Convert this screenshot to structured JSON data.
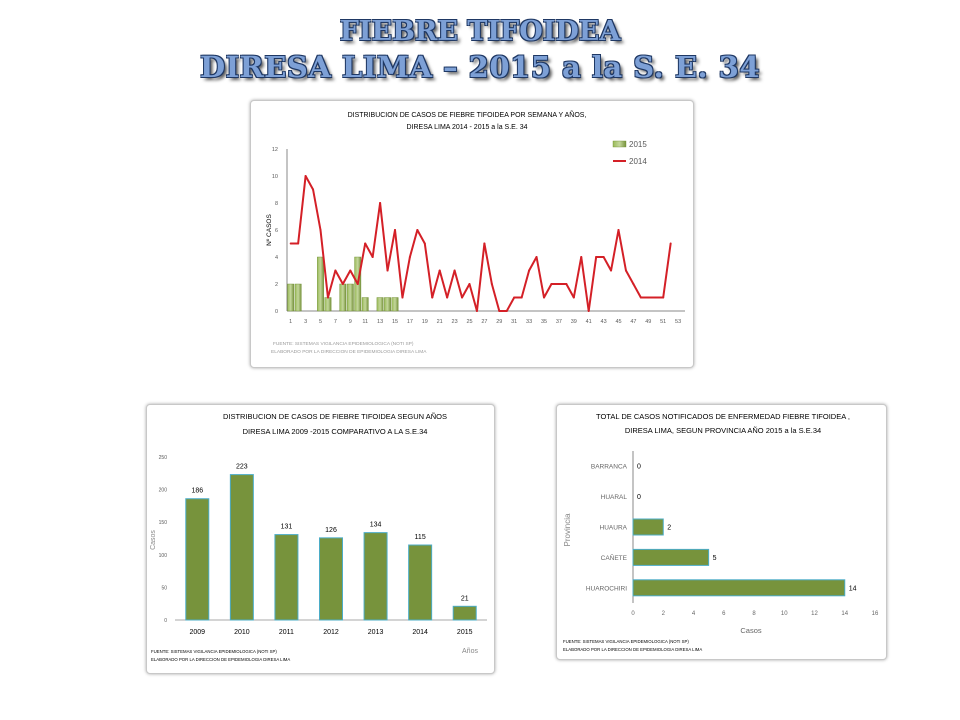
{
  "page": {
    "title_line1": "FIEBRE TIFOIDEA",
    "title_line2": "DIRESA LIMA – 2015 a la  S. E. 34"
  },
  "colors": {
    "bar_green": "#77933c",
    "bar_green_light": "#a9c77a",
    "line_red": "#d42027",
    "title_blue": "#7da0d6",
    "title_outline": "#1f3864"
  },
  "chart_data": [
    {
      "type": "line",
      "title": "DISTRIBUCION DE CASOS DE FIEBRE TIFOIDEA POR SEMANA Y AÑOS,",
      "subtitle": "DIRESA  LIMA  2014 - 2015 a la S.E. 34",
      "xlabel": "",
      "ylabel": "Nº CASOS",
      "ylim": [
        0,
        12
      ],
      "yticks": [
        0,
        2,
        4,
        6,
        8,
        10,
        12
      ],
      "ytick_labels": [
        "0",
        "2",
        "4",
        "6",
        "8",
        "10",
        "12"
      ],
      "xtick_labels": [
        "1",
        "3",
        "5",
        "7",
        "9",
        "11",
        "13",
        "15",
        "17",
        "19",
        "21",
        "23",
        "25",
        "27",
        "29",
        "31",
        "33",
        "35",
        "37",
        "39",
        "41",
        "43",
        "45",
        "47",
        "49",
        "51",
        "53"
      ],
      "legend_position": "top-right",
      "series": [
        {
          "name": "2015",
          "kind": "bar",
          "x": [
            1,
            2,
            3,
            4,
            5,
            6,
            7,
            8,
            9,
            10,
            11,
            12,
            13,
            14,
            15,
            16,
            17,
            18,
            19,
            20,
            21,
            22,
            23,
            24,
            25,
            26,
            27,
            28,
            29,
            30,
            31,
            32,
            33,
            34
          ],
          "values": [
            2,
            2,
            0,
            0,
            4,
            1,
            0,
            2,
            2,
            4,
            1,
            0,
            1,
            1,
            1,
            0,
            0,
            0,
            0,
            0,
            0,
            0,
            0,
            0,
            0,
            0,
            0,
            0,
            0,
            0,
            0,
            0,
            0,
            0
          ]
        },
        {
          "name": "2014",
          "kind": "line",
          "x": [
            1,
            2,
            3,
            4,
            5,
            6,
            7,
            8,
            9,
            10,
            11,
            12,
            13,
            14,
            15,
            16,
            17,
            18,
            19,
            20,
            21,
            22,
            23,
            24,
            25,
            26,
            27,
            28,
            29,
            30,
            31,
            32,
            33,
            34,
            35,
            36,
            37,
            38,
            39,
            40,
            41,
            42,
            43,
            44,
            45,
            46,
            47,
            48,
            49,
            50,
            51,
            52
          ],
          "values": [
            5,
            5,
            10,
            9,
            6,
            1,
            3,
            2,
            3,
            2,
            5,
            4,
            8,
            3,
            6,
            1,
            4,
            6,
            5,
            1,
            3,
            1,
            3,
            1,
            2,
            0,
            5,
            2,
            0,
            0,
            1,
            1,
            3,
            4,
            1,
            2,
            2,
            2,
            1,
            4,
            0,
            4,
            4,
            3,
            6,
            3,
            2,
            1,
            1,
            1,
            1,
            5
          ]
        }
      ],
      "notes": [
        "FUENTE: SISTEMAS VIGILANCIA EPIDEMIOLOGICA (NOTI SP)",
        "ELABORADO POR LA DIRECCION DE EPIDEMIOLOGIA DIRESA LIMA"
      ]
    },
    {
      "type": "bar",
      "title": "DISTRIBUCION DE CASOS DE FIEBRE TIFOIDEA SEGUN AÑOS",
      "subtitle": "DIRESA LIMA 2009 -2015 COMPARATIVO A LA S.E.34",
      "xlabel": "Años",
      "ylabel": "Casos",
      "ylim": [
        0,
        250
      ],
      "yticks": [
        0,
        50,
        100,
        150,
        200,
        250
      ],
      "ytick_labels": [
        "0",
        "50",
        "100",
        "150",
        "200",
        "250"
      ],
      "categories": [
        "2009",
        "2010",
        "2011",
        "2012",
        "2013",
        "2014",
        "2015"
      ],
      "values": [
        186,
        223,
        131,
        126,
        134,
        115,
        21
      ],
      "data_labels": [
        "186",
        "223",
        "131",
        "126",
        "134",
        "115",
        "21"
      ],
      "notes": [
        "FUENTE: SISTEMAS VIGILANCIA EPIDEMIOLOGICA (NOTI SP)",
        "ELABORADO POR LA DIRECCION DE EPIDEMIOLOGIA DIRESA LIMA"
      ]
    },
    {
      "type": "bar",
      "orientation": "horizontal",
      "title": "TOTAL DE CASOS NOTIFICADOS DE ENFERMEDAD FIEBRE TIFOIDEA ,",
      "subtitle": "DIRESA LIMA, SEGUN PROVINCIA AÑO 2015 a la S.E.34",
      "xlabel": "Casos",
      "ylabel": "Provincia",
      "xlim": [
        0,
        16
      ],
      "xticks": [
        0,
        2,
        4,
        6,
        8,
        10,
        12,
        14,
        16
      ],
      "xtick_labels": [
        "0",
        "2",
        "4",
        "6",
        "8",
        "10",
        "12",
        "14",
        "16"
      ],
      "categories": [
        "BARRANCA",
        "HUARAL",
        "HUAURA",
        "CAÑETE",
        "HUAROCHIRI"
      ],
      "values": [
        0,
        0,
        2,
        5,
        14
      ],
      "data_labels": [
        "0",
        "0",
        "2",
        "5",
        "14"
      ],
      "notes": [
        "FUENTE: SISTEMAS VIGILANCIA EPIDEMIOLOGICA (NOTI SP)",
        "ELABORADO POR LA DIRECCION DE EPIDEMIOLOGIA DIRESA LIMA"
      ]
    }
  ]
}
